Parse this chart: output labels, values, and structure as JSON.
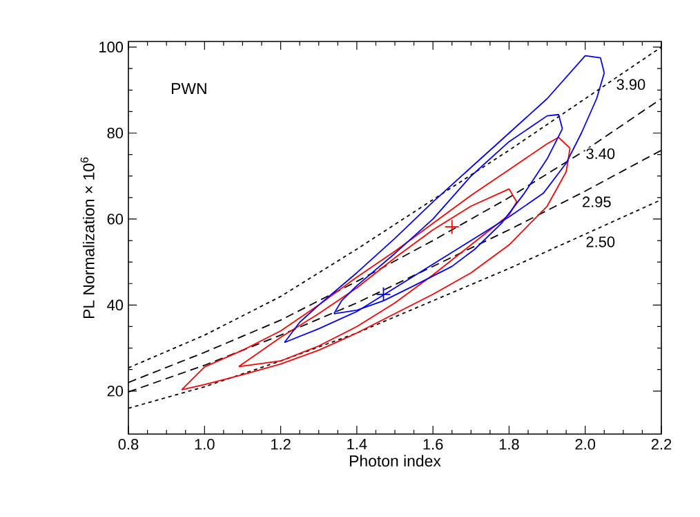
{
  "chart_data": {
    "type": "line",
    "xlabel": "Photon index",
    "ylabel": "PL Normalization × 10$^{6}$",
    "xlim": [
      0.8,
      2.2
    ],
    "ylim": [
      10,
      101.3
    ],
    "xticks": [
      {
        "value": 0.8,
        "label": "0.8"
      },
      {
        "value": 1.0,
        "label": "1.0"
      },
      {
        "value": 1.2,
        "label": "1.2"
      },
      {
        "value": 1.4,
        "label": "1.4"
      },
      {
        "value": 1.6,
        "label": "1.6"
      },
      {
        "value": 1.8,
        "label": "1.8"
      },
      {
        "value": 2.0,
        "label": "2.0"
      },
      {
        "value": 2.2,
        "label": "2.2"
      }
    ],
    "yticks": [
      20,
      40,
      60,
      80,
      100
    ],
    "grid": false,
    "marker": "none",
    "series": [
      {
        "color": "#000000",
        "line_style": "dotted",
        "x": [
          0.8,
          1.0,
          1.2,
          1.4,
          1.6,
          1.8,
          2.0,
          2.2
        ],
        "values": [
          16,
          21,
          27,
          33.5,
          41,
          48.5,
          56.5,
          64.5
        ]
      },
      {
        "color": "#000000",
        "line_style": "dashed",
        "x": [
          0.8,
          1.0,
          1.2,
          1.4,
          1.6,
          1.8,
          2.0,
          2.2
        ],
        "values": [
          19.8,
          26,
          33,
          40.5,
          49,
          57.5,
          66.5,
          76
        ]
      },
      {
        "color": "#000000",
        "line_style": "dashed",
        "x": [
          0.8,
          1.0,
          1.2,
          1.4,
          1.6,
          1.8,
          2.0,
          2.2
        ],
        "values": [
          22,
          29,
          36.5,
          45.5,
          55,
          65,
          76,
          88
        ]
      },
      {
        "color": "#000000",
        "line_style": "dotted",
        "x": [
          0.8,
          1.0,
          1.2,
          1.4,
          1.6,
          1.8,
          2.0,
          2.2
        ],
        "values": [
          25.4,
          33,
          42,
          53,
          64.5,
          76,
          88,
          100
        ]
      },
      {
        "color": "#ff0000",
        "line_style": "solid",
        "x": [
          0.94,
          1.0,
          1.1,
          1.2,
          1.3,
          1.4,
          1.5,
          1.6,
          1.7,
          1.8,
          1.9,
          1.93,
          1.96
        ],
        "values": [
          20.3,
          25.6,
          29.5,
          34,
          40,
          46.5,
          52.5,
          59,
          65.5,
          71.5,
          77.5,
          79,
          76.5
        ]
      },
      {
        "color": "#ff0000",
        "line_style": "solid",
        "x": [
          0.94,
          1.0,
          1.1,
          1.2,
          1.3,
          1.4,
          1.5,
          1.6,
          1.7,
          1.8,
          1.9,
          1.95,
          1.96
        ],
        "values": [
          20.3,
          21.5,
          23.8,
          26.3,
          29.5,
          33.5,
          38,
          42.5,
          47.5,
          54,
          63,
          71,
          76.5
        ]
      },
      {
        "color": "#ff0000",
        "line_style": "solid",
        "x": [
          1.09,
          1.2,
          1.3,
          1.4,
          1.5,
          1.6,
          1.7,
          1.8,
          1.82
        ],
        "values": [
          25.7,
          32.5,
          38,
          44,
          51,
          57.5,
          63,
          67,
          64
        ]
      },
      {
        "color": "#ff0000",
        "line_style": "solid",
        "x": [
          1.09,
          1.2,
          1.3,
          1.4,
          1.5,
          1.6,
          1.7,
          1.8,
          1.82
        ],
        "values": [
          25.7,
          27,
          30.5,
          35,
          40.5,
          47,
          54,
          61,
          64
        ]
      },
      {
        "color": "#0000ff",
        "line_style": "solid",
        "x": [
          1.21,
          1.25,
          1.3,
          1.4,
          1.5,
          1.6,
          1.7,
          1.8,
          1.9,
          2.0,
          2.04,
          2.05
        ],
        "values": [
          31.3,
          36,
          40,
          47.5,
          55.5,
          64,
          72,
          80,
          88,
          98,
          97.5,
          94
        ]
      },
      {
        "color": "#0000ff",
        "line_style": "solid",
        "x": [
          1.21,
          1.3,
          1.4,
          1.5,
          1.6,
          1.7,
          1.8,
          1.89,
          1.95,
          1.99,
          2.03,
          2.05
        ],
        "values": [
          31.3,
          34.5,
          38.5,
          44,
          49.5,
          55,
          60.5,
          66,
          73,
          80,
          88,
          94
        ]
      },
      {
        "color": "#0000ff",
        "line_style": "solid",
        "x": [
          1.34,
          1.36,
          1.4,
          1.5,
          1.6,
          1.7,
          1.8,
          1.9,
          1.93,
          1.94
        ],
        "values": [
          38,
          41,
          44.5,
          52,
          60,
          70,
          78,
          84,
          84.3,
          81
        ]
      },
      {
        "color": "#0000ff",
        "line_style": "solid",
        "x": [
          1.34,
          1.4,
          1.47,
          1.55,
          1.65,
          1.71,
          1.78,
          1.84,
          1.9,
          1.94
        ],
        "values": [
          38,
          38.8,
          41,
          44.5,
          49,
          53,
          59,
          66,
          74,
          81
        ]
      },
      {
        "type": "scatter",
        "marker": "cross",
        "color": "#ff0000",
        "x": [
          1.65
        ],
        "values": [
          58.2
        ]
      },
      {
        "type": "scatter",
        "marker": "cross",
        "color": "#0000ff",
        "x": [
          1.47
        ],
        "values": [
          42.5
        ]
      }
    ],
    "annotations": [
      "PWN",
      {
        "text": "3.90",
        "x": 2.12,
        "y": 91.3
      },
      {
        "text": "3.40",
        "x": 2.04,
        "y": 75.2
      },
      {
        "text": "2.95",
        "x": 2.03,
        "y": 64
      },
      {
        "text": "2.50",
        "x": 2.04,
        "y": 54.7
      }
    ]
  }
}
